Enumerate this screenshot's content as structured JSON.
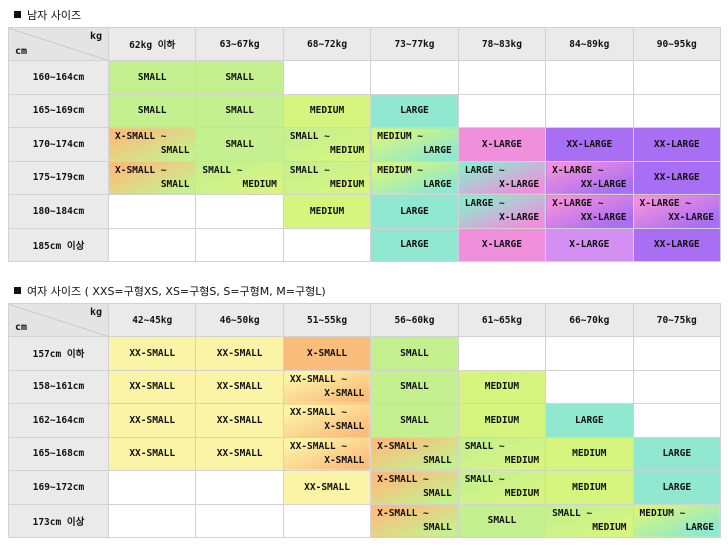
{
  "men": {
    "title": "남자 사이즈",
    "corner_kg": "kg",
    "corner_cm": "cm",
    "weights": [
      "62kg 이하",
      "63~67kg",
      "68~72kg",
      "73~77kg",
      "78~83kg",
      "84~89kg",
      "90~95kg"
    ],
    "rows": [
      {
        "height": "160~164cm",
        "cells": [
          [
            "SMALL"
          ],
          [
            "SMALL"
          ],
          [],
          [],
          [],
          [],
          []
        ]
      },
      {
        "height": "165~169cm",
        "cells": [
          [
            "SMALL"
          ],
          [
            "SMALL"
          ],
          [
            "MEDIUM"
          ],
          [
            "LARGE"
          ],
          [],
          [],
          []
        ]
      },
      {
        "height": "170~174cm",
        "cells": [
          [
            "X-SMALL ~",
            "SMALL"
          ],
          [
            "SMALL"
          ],
          [
            "SMALL ~",
            "MEDIUM"
          ],
          [
            "MEDIUM ~",
            "LARGE"
          ],
          [
            "X-LARGE"
          ],
          [
            "XX-LARGE"
          ],
          [
            "XX-LARGE"
          ]
        ]
      },
      {
        "height": "175~179cm",
        "cells": [
          [
            "X-SMALL ~",
            "SMALL"
          ],
          [
            "SMALL ~",
            "MEDIUM"
          ],
          [
            "SMALL ~",
            "MEDIUM"
          ],
          [
            "MEDIUM ~",
            "LARGE"
          ],
          [
            "LARGE ~",
            "X-LARGE"
          ],
          [
            "X-LARGE ~",
            "XX-LARGE"
          ],
          [
            "XX-LARGE"
          ]
        ]
      },
      {
        "height": "180~184cm",
        "cells": [
          [],
          [],
          [
            "MEDIUM"
          ],
          [
            "LARGE"
          ],
          [
            "LARGE ~",
            "X-LARGE"
          ],
          [
            "X-LARGE ~",
            "XX-LARGE"
          ],
          [
            "X-LARGE ~",
            "XX-LARGE"
          ]
        ]
      },
      {
        "height": "185cm 이상",
        "cells": [
          [],
          [],
          [],
          [
            "LARGE"
          ],
          [
            "X-LARGE"
          ],
          [
            "X-LARGE"
          ],
          [
            "XX-LARGE"
          ]
        ]
      }
    ]
  },
  "women": {
    "title": "여자 사이즈 ( XXS=구형XS, XS=구형S, S=구형M, M=구형L)",
    "corner_kg": "kg",
    "corner_cm": "cm",
    "weights": [
      "42~45kg",
      "46~50kg",
      "51~55kg",
      "56~60kg",
      "61~65kg",
      "66~70kg",
      "70~75kg"
    ],
    "rows": [
      {
        "height": "157cm 이하",
        "cells": [
          [
            "XX-SMALL"
          ],
          [
            "XX-SMALL"
          ],
          [
            "X-SMALL"
          ],
          [
            "SMALL"
          ],
          [],
          [],
          []
        ]
      },
      {
        "height": "158~161cm",
        "cells": [
          [
            "XX-SMALL"
          ],
          [
            "XX-SMALL"
          ],
          [
            "XX-SMALL ~",
            "X-SMALL"
          ],
          [
            "SMALL"
          ],
          [
            "MEDIUM"
          ],
          [],
          []
        ]
      },
      {
        "height": "162~164cm",
        "cells": [
          [
            "XX-SMALL"
          ],
          [
            "XX-SMALL"
          ],
          [
            "XX-SMALL ~",
            "X-SMALL"
          ],
          [
            "SMALL"
          ],
          [
            "MEDIUM"
          ],
          [
            "LARGE"
          ],
          []
        ]
      },
      {
        "height": "165~168cm",
        "cells": [
          [
            "XX-SMALL"
          ],
          [
            "XX-SMALL"
          ],
          [
            "XX-SMALL ~",
            "X-SMALL"
          ],
          [
            "X-SMALL ~",
            "SMALL"
          ],
          [
            "SMALL ~",
            "MEDIUM"
          ],
          [
            "MEDIUM"
          ],
          [
            "LARGE"
          ]
        ]
      },
      {
        "height": "169~172cm",
        "cells": [
          [],
          [],
          [
            "XX-SMALL"
          ],
          [
            "X-SMALL ~",
            "SMALL"
          ],
          [
            "SMALL ~",
            "MEDIUM"
          ],
          [
            "MEDIUM"
          ],
          [
            "LARGE"
          ]
        ]
      },
      {
        "height": "173cm 이상",
        "cells": [
          [],
          [],
          [],
          [
            "X-SMALL ~",
            "SMALL"
          ],
          [
            "SMALL"
          ],
          [
            "SMALL ~",
            "MEDIUM"
          ],
          [
            "MEDIUM ~",
            "LARGE"
          ]
        ]
      }
    ]
  },
  "colors": {
    "xx-small": "#fbf4a6",
    "x-small": "#fbbd7c",
    "small": "#c5f08f",
    "medium": "#d6f57f",
    "large": "#8fe8cf",
    "x-large": "#f08fdc",
    "xx-large": "#a86ef3",
    "x-large-men185": "#d48ff2"
  }
}
